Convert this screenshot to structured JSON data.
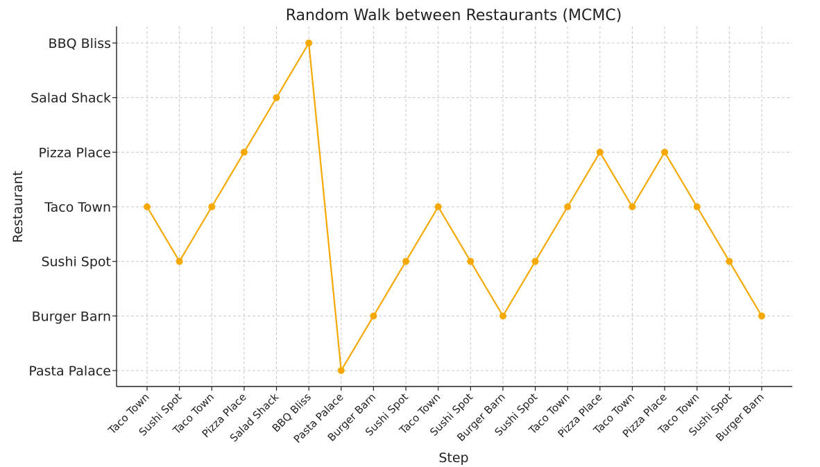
{
  "chart_data": {
    "type": "line",
    "title": "Random Walk between Restaurants (MCMC)",
    "xlabel": "Step",
    "ylabel": "Restaurant",
    "y_categories": [
      "Pasta Palace",
      "Burger Barn",
      "Sushi Spot",
      "Taco Town",
      "Pizza Place",
      "Salad Shack",
      "BBQ Bliss"
    ],
    "x_tick_labels": [
      "Taco Town",
      "Sushi Spot",
      "Taco Town",
      "Pizza Place",
      "Salad Shack",
      "BBQ Bliss",
      "Pasta Palace",
      "Burger Barn",
      "Sushi Spot",
      "Taco Town",
      "Sushi Spot",
      "Burger Barn",
      "Sushi Spot",
      "Taco Town",
      "Pizza Place",
      "Taco Town",
      "Pizza Place",
      "Taco Town",
      "Sushi Spot",
      "Burger Barn"
    ],
    "series": [
      {
        "values": [
          "Taco Town",
          "Sushi Spot",
          "Taco Town",
          "Pizza Place",
          "Salad Shack",
          "BBQ Bliss",
          "Pasta Palace",
          "Burger Barn",
          "Sushi Spot",
          "Taco Town",
          "Sushi Spot",
          "Burger Barn",
          "Sushi Spot",
          "Taco Town",
          "Pizza Place",
          "Taco Town",
          "Pizza Place",
          "Taco Town",
          "Sushi Spot",
          "Burger Barn"
        ],
        "color": "#f5a800"
      }
    ],
    "grid": true,
    "marker": "circle"
  }
}
